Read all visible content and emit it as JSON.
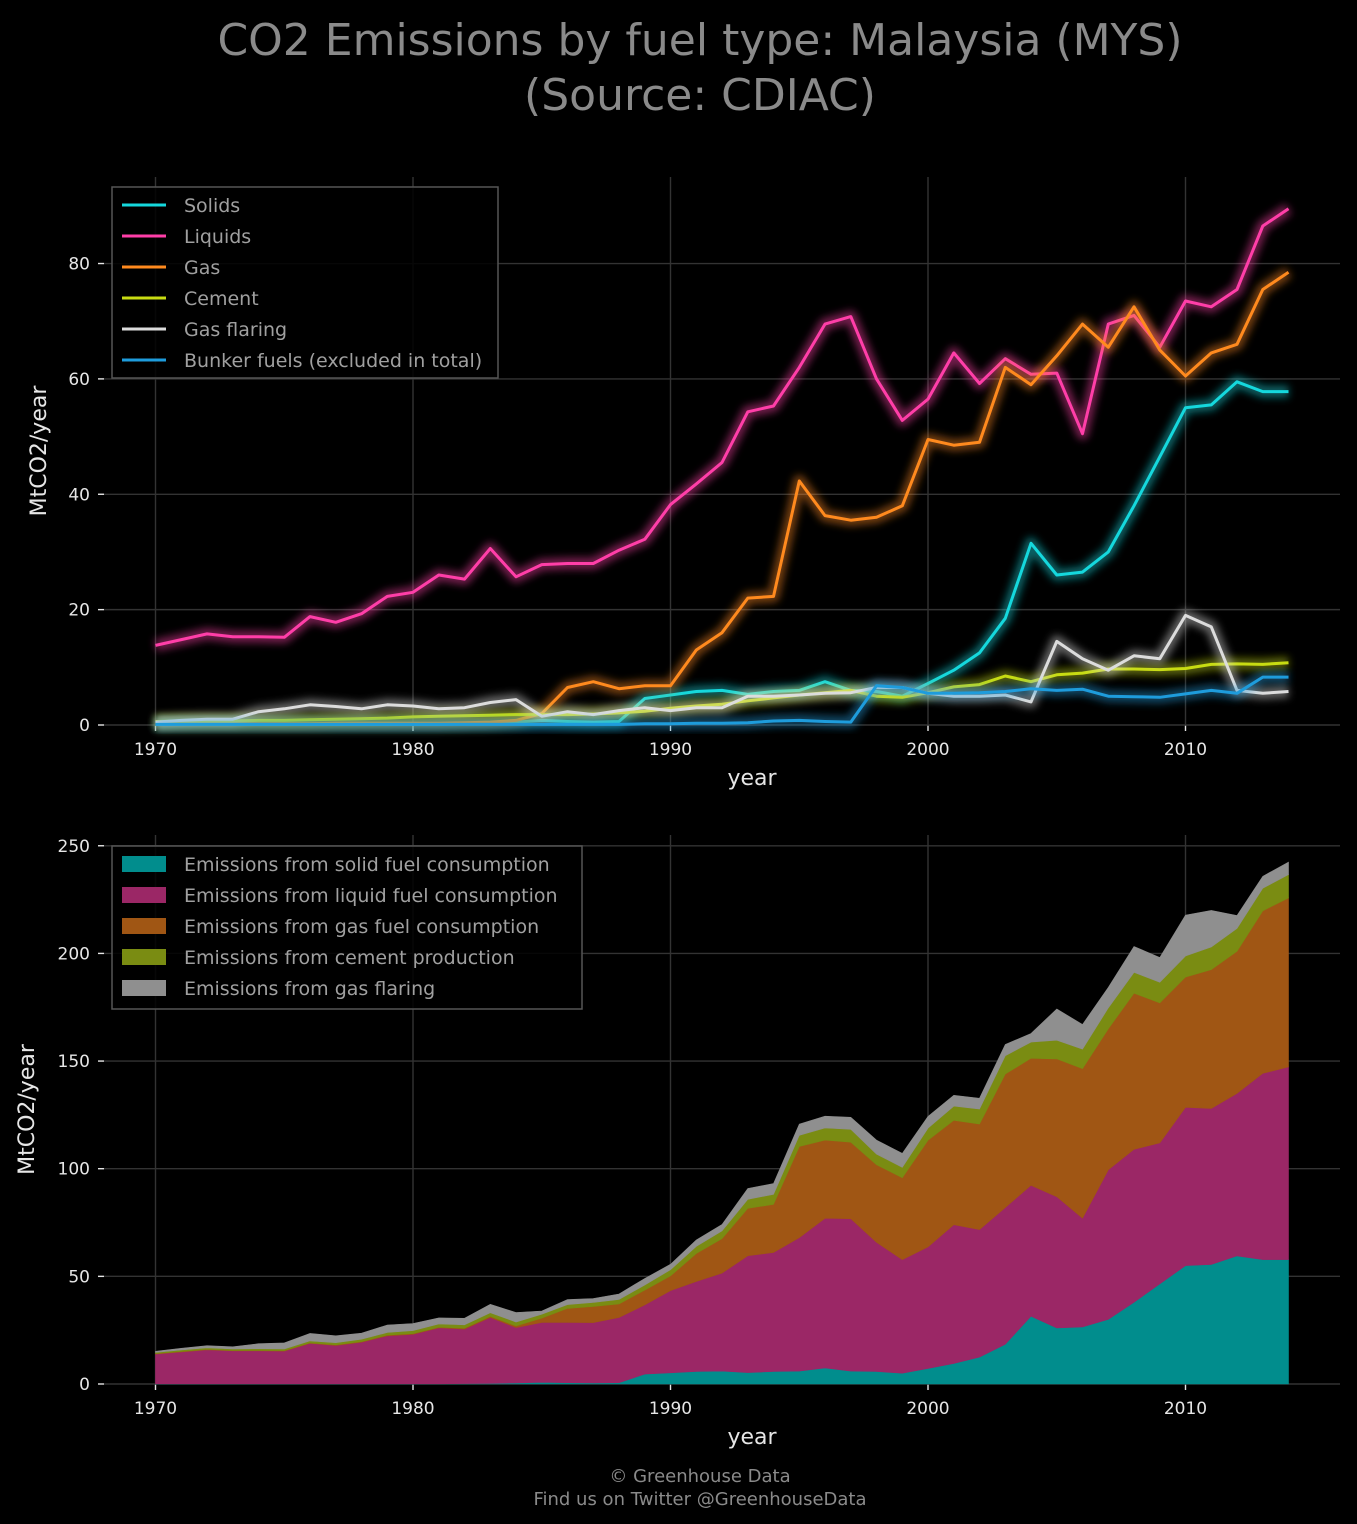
{
  "title_line1": "CO2 Emissions by fuel type: Malaysia (MYS)",
  "title_line2": "(Source: CDIAC)",
  "footer_line1": "© Greenhouse Data",
  "footer_line2": "Find us on Twitter @GreenhouseData",
  "chart_data": [
    {
      "type": "line",
      "xlabel": "year",
      "ylabel": "MtCO2/year",
      "xlim": [
        1968,
        2016
      ],
      "ylim": [
        0,
        95
      ],
      "xticks": [
        1970,
        1980,
        1990,
        2000,
        2010
      ],
      "yticks": [
        0,
        20,
        40,
        60,
        80
      ],
      "grid": true,
      "legend_position": "top-left",
      "x": [
        1970,
        1971,
        1972,
        1973,
        1974,
        1975,
        1976,
        1977,
        1978,
        1979,
        1980,
        1981,
        1982,
        1983,
        1984,
        1985,
        1986,
        1987,
        1988,
        1989,
        1990,
        1991,
        1992,
        1993,
        1994,
        1995,
        1996,
        1997,
        1998,
        1999,
        2000,
        2001,
        2002,
        2003,
        2004,
        2005,
        2006,
        2007,
        2008,
        2009,
        2010,
        2011,
        2012,
        2013,
        2014
      ],
      "series": [
        {
          "name": "Solids",
          "color": "#15d8dd",
          "values": [
            0.1,
            0.1,
            0.1,
            0.1,
            0.1,
            0.1,
            0.1,
            0.1,
            0.1,
            0.1,
            0.1,
            0.1,
            0.2,
            0.3,
            0.5,
            0.8,
            0.6,
            0.5,
            0.6,
            4.6,
            5.2,
            5.8,
            6.0,
            5.3,
            5.8,
            6.0,
            7.5,
            6.0,
            5.8,
            5.0,
            7.2,
            9.5,
            12.5,
            18.5,
            31.5,
            26.0,
            26.5,
            30.0,
            38.0,
            46.5,
            55.0,
            55.5,
            59.5,
            57.8,
            57.8
          ]
        },
        {
          "name": "Liquids",
          "color": "#ff3ea8",
          "values": [
            13.8,
            14.8,
            15.8,
            15.3,
            15.3,
            15.2,
            18.8,
            17.8,
            19.3,
            22.3,
            23.0,
            26.0,
            25.3,
            30.6,
            25.7,
            27.8,
            28.0,
            28.0,
            30.3,
            32.2,
            38.2,
            41.8,
            45.5,
            54.3,
            55.3,
            62.0,
            69.5,
            70.8,
            60.0,
            52.8,
            56.5,
            64.5,
            59.2,
            63.5,
            60.8,
            61.0,
            50.5,
            69.5,
            71.0,
            65.5,
            73.5,
            72.5,
            75.5,
            86.5,
            89.5
          ]
        },
        {
          "name": "Gas",
          "color": "#ff8a1e",
          "values": [
            0.2,
            0.2,
            0.2,
            0.2,
            0.2,
            0.2,
            0.2,
            0.3,
            0.3,
            0.3,
            0.3,
            0.3,
            0.4,
            0.5,
            0.8,
            2.0,
            6.5,
            7.5,
            6.3,
            6.8,
            6.8,
            13.0,
            16.0,
            22.0,
            22.3,
            42.3,
            36.3,
            35.5,
            36.0,
            38.0,
            49.5,
            48.5,
            49.0,
            62.0,
            59.0,
            64.0,
            69.5,
            65.5,
            72.5,
            65.0,
            60.5,
            64.5,
            66.0,
            75.5,
            78.5
          ]
        },
        {
          "name": "Cement",
          "color": "#c8dc12",
          "values": [
            0.6,
            0.7,
            0.7,
            0.7,
            0.8,
            0.8,
            0.9,
            1.0,
            1.1,
            1.2,
            1.4,
            1.5,
            1.6,
            1.7,
            1.8,
            1.8,
            1.8,
            1.9,
            2.1,
            2.4,
            2.9,
            3.3,
            3.6,
            4.2,
            4.7,
            5.2,
            5.6,
            6.0,
            5.0,
            4.8,
            5.6,
            6.6,
            7.0,
            8.5,
            7.5,
            8.7,
            9.0,
            9.7,
            9.7,
            9.6,
            9.8,
            10.5,
            10.6,
            10.5,
            10.8
          ]
        },
        {
          "name": "Gas flaring",
          "color": "#dcdcdc",
          "values": [
            0.5,
            0.8,
            1.0,
            1.0,
            2.3,
            2.8,
            3.5,
            3.2,
            2.8,
            3.5,
            3.3,
            2.8,
            3.0,
            3.9,
            4.4,
            1.5,
            2.3,
            1.8,
            2.5,
            3.0,
            2.5,
            3.0,
            3.0,
            5.0,
            5.0,
            5.2,
            5.5,
            5.6,
            6.5,
            6.5,
            5.5,
            5.0,
            5.0,
            5.2,
            4.0,
            14.5,
            11.5,
            9.5,
            12.0,
            11.5,
            19.0,
            17.0,
            6.0,
            5.5,
            5.8
          ]
        },
        {
          "name": "Bunker fuels (excluded in total)",
          "color": "#1e9cdc",
          "values": [
            0.1,
            0.1,
            0.1,
            0.1,
            0.1,
            0.1,
            0.1,
            0.1,
            0.1,
            0.1,
            0.1,
            0.1,
            0.1,
            0.1,
            0.1,
            0.1,
            0.1,
            0.1,
            0.1,
            0.2,
            0.2,
            0.3,
            0.3,
            0.4,
            0.7,
            0.8,
            0.6,
            0.5,
            6.8,
            6.5,
            5.5,
            5.5,
            5.6,
            5.8,
            6.3,
            6.0,
            6.2,
            5.0,
            4.9,
            4.8,
            5.4,
            6.0,
            5.5,
            8.3,
            8.3
          ]
        }
      ]
    },
    {
      "type": "area",
      "stacked": true,
      "xlabel": "year",
      "ylabel": "MtCO2/year",
      "xlim": [
        1968,
        2016
      ],
      "ylim": [
        0,
        255
      ],
      "xticks": [
        1970,
        1980,
        1990,
        2000,
        2010
      ],
      "yticks": [
        0,
        50,
        100,
        150,
        200,
        250
      ],
      "grid": true,
      "legend_position": "top-left",
      "series": [
        {
          "name": "Emissions from solid fuel consumption",
          "color": "#018d8d"
        },
        {
          "name": "Emissions from liquid fuel consumption",
          "color": "#9b2766"
        },
        {
          "name": "Emissions from gas fuel consumption",
          "color": "#a05614"
        },
        {
          "name": "Emissions from cement production",
          "color": "#7a8c12"
        },
        {
          "name": "Emissions from gas flaring",
          "color": "#8f8f8f"
        }
      ]
    }
  ]
}
